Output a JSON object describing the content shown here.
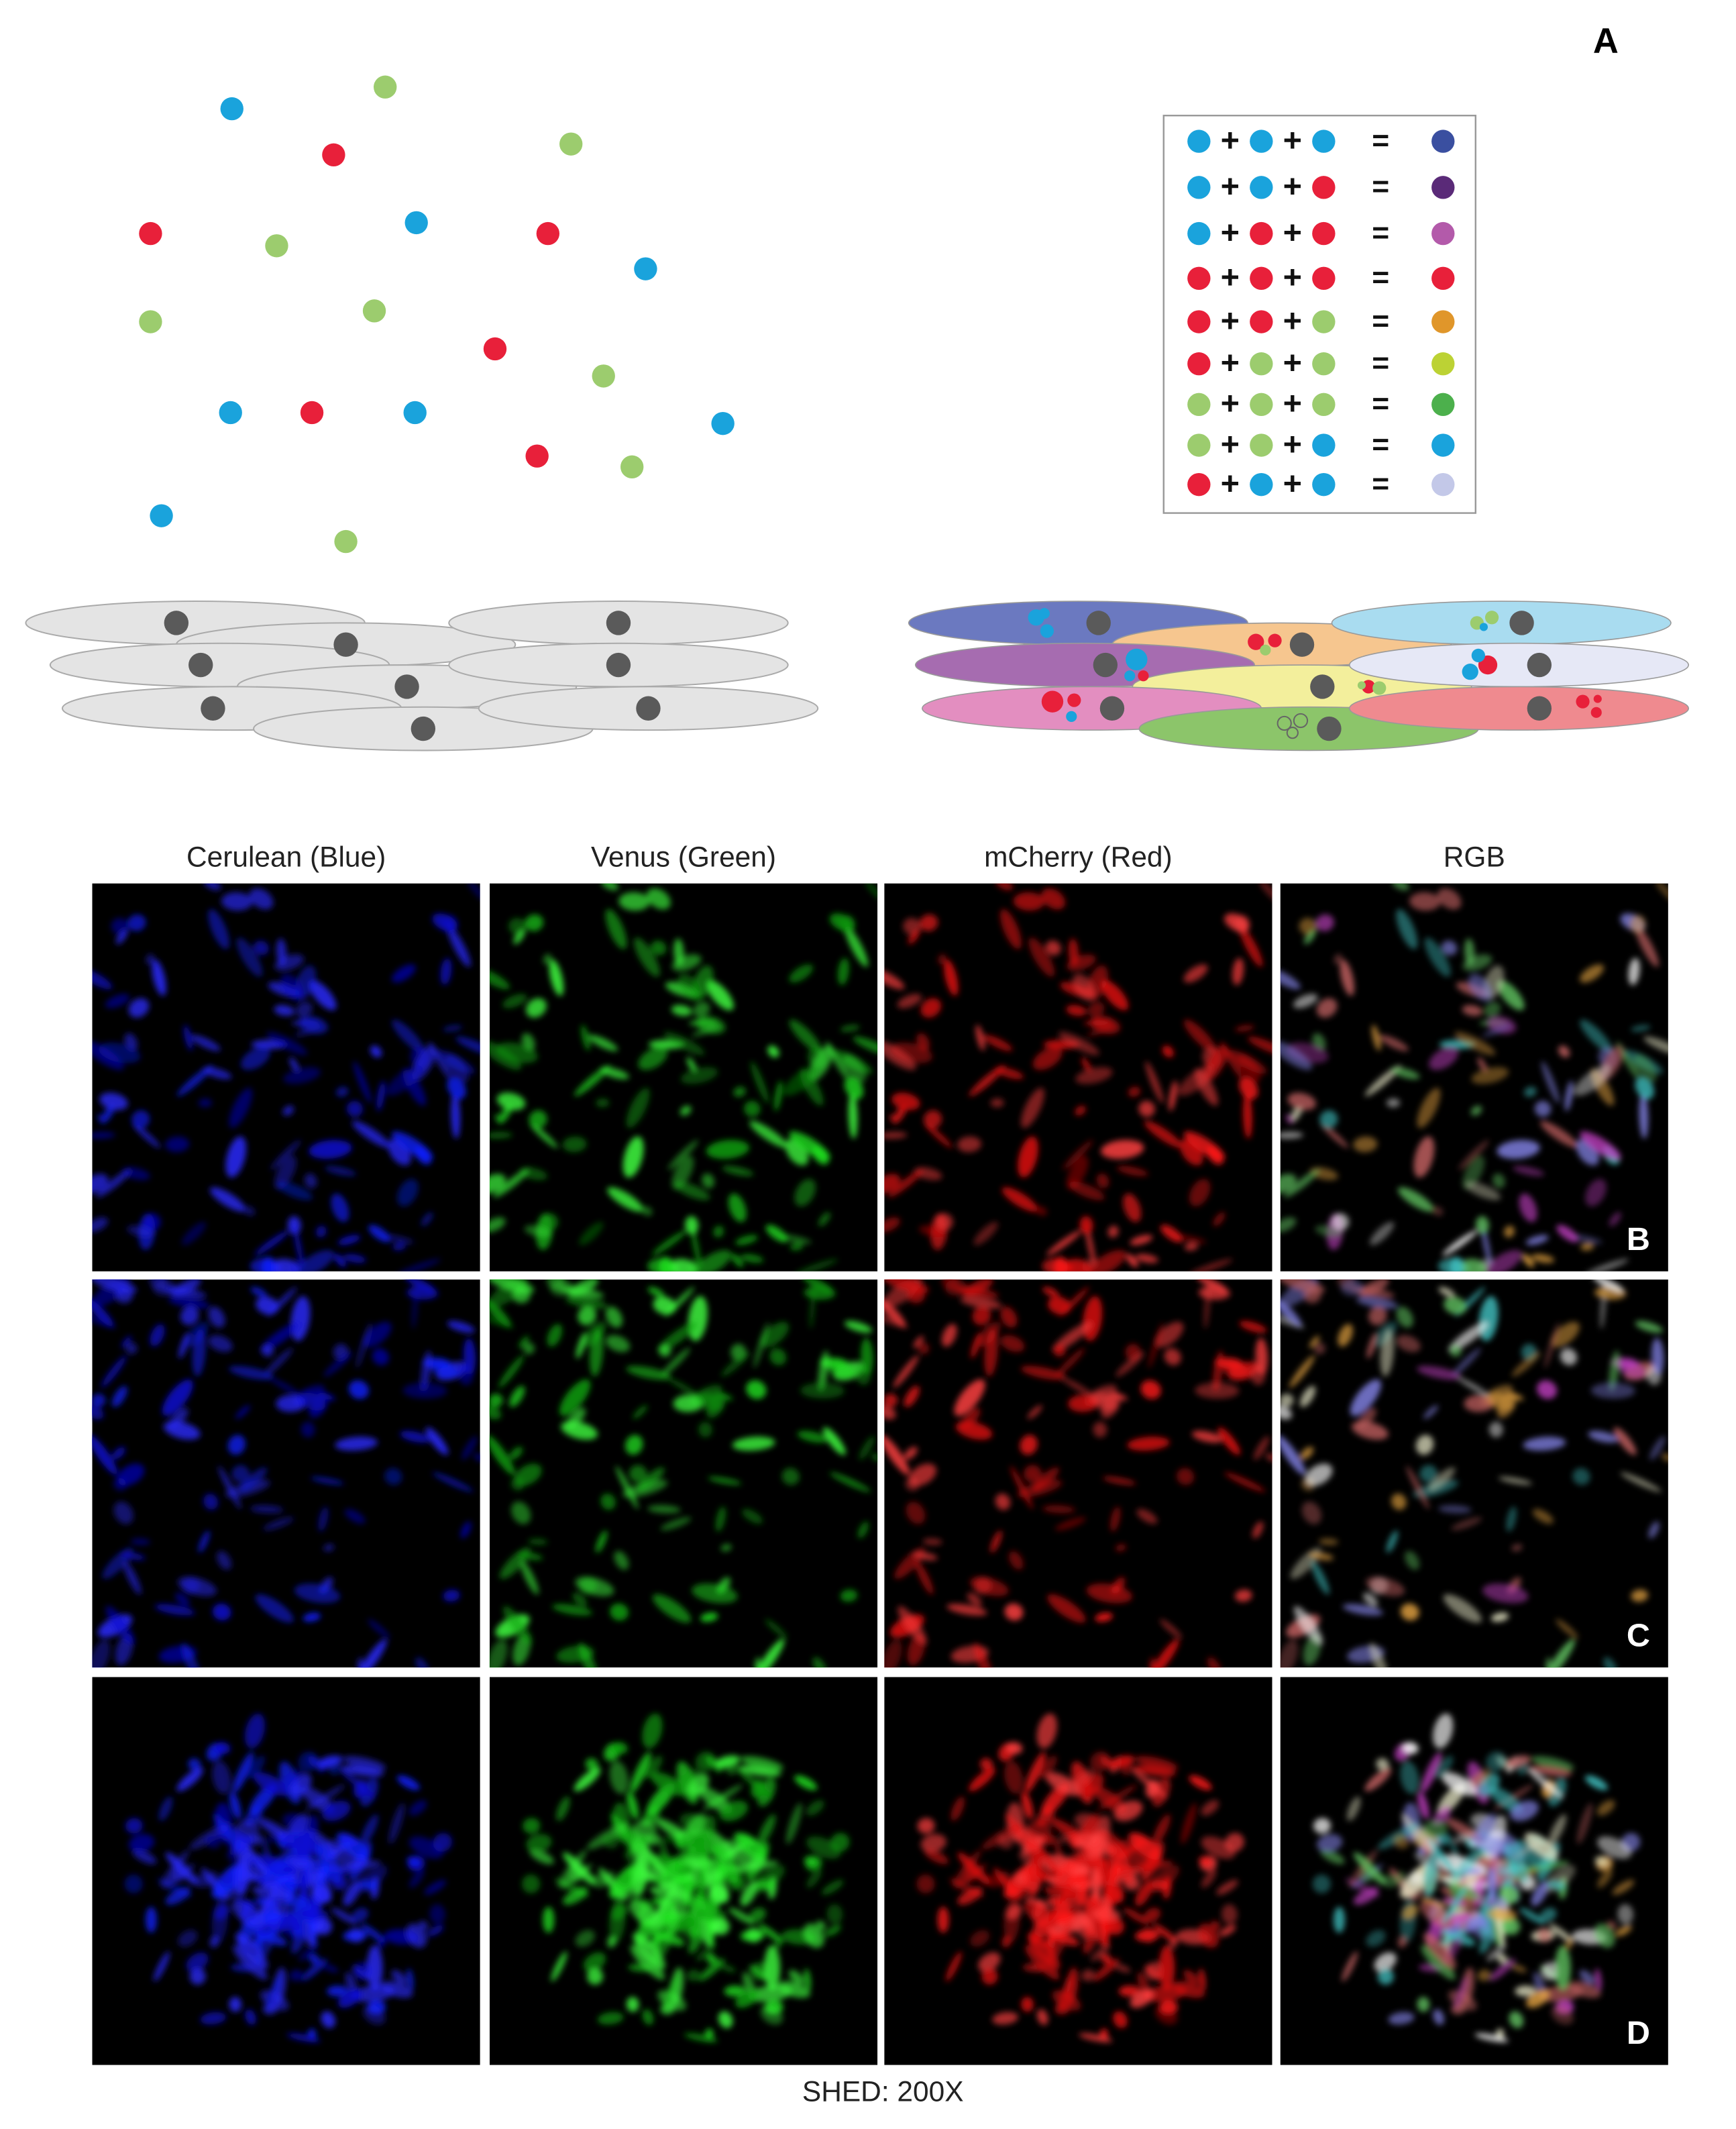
{
  "panel_label": "A",
  "legend": {
    "plus": "+",
    "equals": "="
  },
  "columns": [
    "Cerulean (Blue)",
    "Venus (Green)",
    "mCherry (Red)",
    "RGB"
  ],
  "rows": [
    "B",
    "C",
    "D"
  ],
  "caption": "SHED: 200X"
}
